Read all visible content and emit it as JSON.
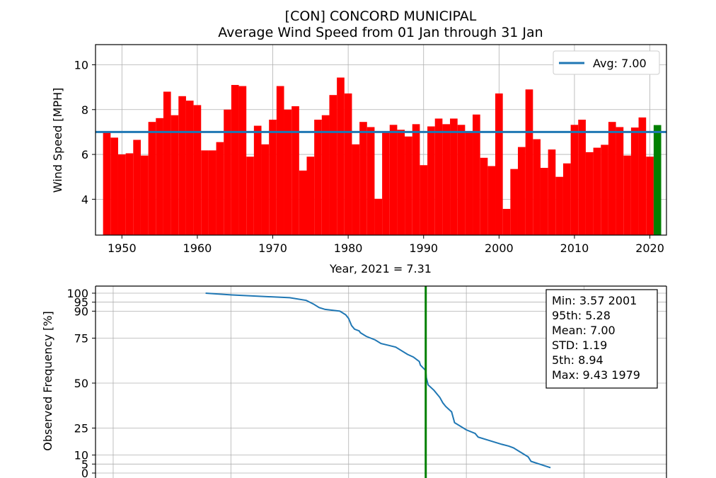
{
  "chart_data": [
    {
      "type": "bar",
      "title": "[CON] CONCORD MUNICIPAL",
      "subtitle": "Average Wind Speed from 01 Jan through 31 Jan",
      "xlabel": "Year, 2021 = 7.31",
      "ylabel": "Wind Speed [MPH]",
      "xlim": [
        1946.5,
        2022.2
      ],
      "ylim": [
        2.4,
        10.9
      ],
      "xticks": [
        1950,
        1960,
        1970,
        1980,
        1990,
        2000,
        2010,
        2020
      ],
      "yticks": [
        4,
        6,
        8,
        10
      ],
      "grid": true,
      "legend": {
        "placement": "upper right",
        "entries": [
          "Avg: 7.00"
        ]
      },
      "bar_color": "#ff0000",
      "highlight": {
        "year": 2021,
        "value": 7.31,
        "color": "#008000"
      },
      "average": {
        "label": "Avg: 7.00",
        "value": 7.0,
        "color": "#1f77b4"
      },
      "series": [
        {
          "x": [
            1948,
            1949,
            1950,
            1951,
            1952,
            1953,
            1954,
            1955,
            1956,
            1957,
            1958,
            1959,
            1960,
            1961,
            1962,
            1963,
            1964,
            1965,
            1966,
            1967,
            1968,
            1969,
            1970,
            1971,
            1972,
            1973,
            1974,
            1975,
            1976,
            1977,
            1978,
            1979,
            1980,
            1981,
            1982,
            1983,
            1984,
            1985,
            1986,
            1987,
            1988,
            1989,
            1990,
            1991,
            1992,
            1993,
            1994,
            1995,
            1996,
            1997,
            1998,
            1999,
            2000,
            2001,
            2002,
            2003,
            2004,
            2005,
            2006,
            2007,
            2008,
            2009,
            2010,
            2011,
            2012,
            2013,
            2014,
            2015,
            2016,
            2017,
            2018,
            2019,
            2020,
            2021
          ],
          "values": [
            7.0,
            6.75,
            6.0,
            6.05,
            6.65,
            5.95,
            7.45,
            7.62,
            8.8,
            7.75,
            8.6,
            8.4,
            8.2,
            6.18,
            6.18,
            6.55,
            8.0,
            9.1,
            9.05,
            5.9,
            7.28,
            6.45,
            7.55,
            9.05,
            8.0,
            8.15,
            5.28,
            5.9,
            7.55,
            7.75,
            8.65,
            9.43,
            8.72,
            6.45,
            7.45,
            7.22,
            4.02,
            7.0,
            7.32,
            7.1,
            6.8,
            7.35,
            5.52,
            7.25,
            7.6,
            7.35,
            7.6,
            7.32,
            7.0,
            7.78,
            5.85,
            5.48,
            8.72,
            3.57,
            5.35,
            6.33,
            8.9,
            6.68,
            5.4,
            6.22,
            5.0,
            5.6,
            7.32,
            7.55,
            6.1,
            6.3,
            6.43,
            7.45,
            7.22,
            5.95,
            7.2,
            7.65,
            5.9,
            7.31
          ]
        }
      ]
    },
    {
      "type": "line",
      "ylabel": "Observed Frequency [%]",
      "xlim": [
        1.7,
        11.4
      ],
      "ylim": [
        0,
        100
      ],
      "yticks": [
        0,
        5,
        10,
        25,
        50,
        75,
        90,
        95,
        100
      ],
      "grid": true,
      "line_color": "#1f77b4",
      "vline": {
        "value": 7.31,
        "color": "#008000"
      },
      "stats": [
        "Min: 3.57 2001",
        "95th: 5.28",
        "Mean: 7.00",
        "STD: 1.19",
        "5th: 8.94",
        "Max: 9.43 1979"
      ],
      "series": [
        {
          "x": [
            3.57,
            4.02,
            5.0,
            5.28,
            5.4,
            5.5,
            5.6,
            5.85,
            5.9,
            5.95,
            6.0,
            6.05,
            6.1,
            6.18,
            6.2,
            6.3,
            6.45,
            6.55,
            6.68,
            6.8,
            7.0,
            7.1,
            7.2,
            7.22,
            7.28,
            7.31,
            7.32,
            7.35,
            7.45,
            7.55,
            7.6,
            7.65,
            7.75,
            7.8,
            8.0,
            8.15,
            8.2,
            8.4,
            8.6,
            8.72,
            8.8,
            8.9,
            9.05,
            9.1,
            9.43
          ],
          "values": [
            100,
            99,
            97.5,
            96,
            94,
            92,
            91,
            90,
            89,
            88,
            86,
            82,
            80,
            79,
            78,
            76,
            74,
            72,
            71,
            70,
            66,
            64.5,
            62,
            60,
            58,
            57,
            53,
            49,
            46,
            42,
            39,
            37,
            34,
            28,
            24,
            22,
            20,
            18,
            16,
            15,
            14,
            12,
            9,
            6.5,
            3
          ]
        }
      ]
    }
  ]
}
